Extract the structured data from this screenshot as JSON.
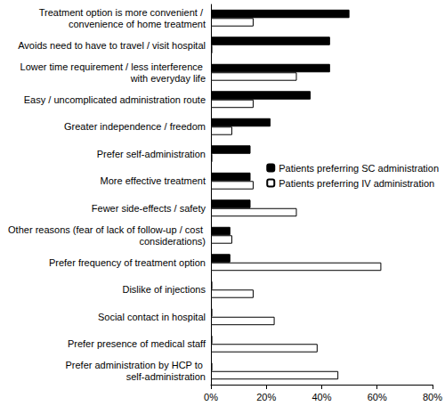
{
  "chart_data": {
    "type": "bar",
    "orientation": "horizontal",
    "categories": [
      "Treatment option is more convenient / convenience of home treatment",
      "Avoids need to have to travel / visit hospital",
      "Lower time requirement / less interference with everyday life",
      "Easy / uncomplicated administration route",
      "Greater independence / freedom",
      "Prefer self-administration",
      "More effective treatment",
      "Fewer side-effects / safety",
      "Other reasons (fear of lack of follow-up / cost considerations)",
      "Prefer frequency of treatment option",
      "Dislike of injections",
      "Social contact in hospital",
      "Prefer presence of medical staff",
      "Prefer administration by HCP to self-administration"
    ],
    "series": [
      {
        "name": "Patients preferring SC administration",
        "color": "#000000",
        "values": [
          50,
          43,
          43,
          36,
          21.5,
          14.3,
          14.3,
          14.3,
          7,
          7,
          0.5,
          0.5,
          0.5,
          0.5
        ]
      },
      {
        "name": "Patients preferring IV administration",
        "color": "#ffffff",
        "values": [
          15.4,
          0.5,
          31,
          15.4,
          7.7,
          0.5,
          15.4,
          31,
          7.7,
          61.5,
          15.4,
          23,
          38.5,
          46
        ]
      }
    ],
    "xlim": [
      0,
      80
    ],
    "xticks": [
      {
        "value": 0,
        "label": "0%"
      },
      {
        "value": 20,
        "label": "20%"
      },
      {
        "value": 40,
        "label": "40%"
      },
      {
        "value": 60,
        "label": "60%"
      },
      {
        "value": 80,
        "label": "80%"
      }
    ],
    "grid": false,
    "legend": "right"
  }
}
